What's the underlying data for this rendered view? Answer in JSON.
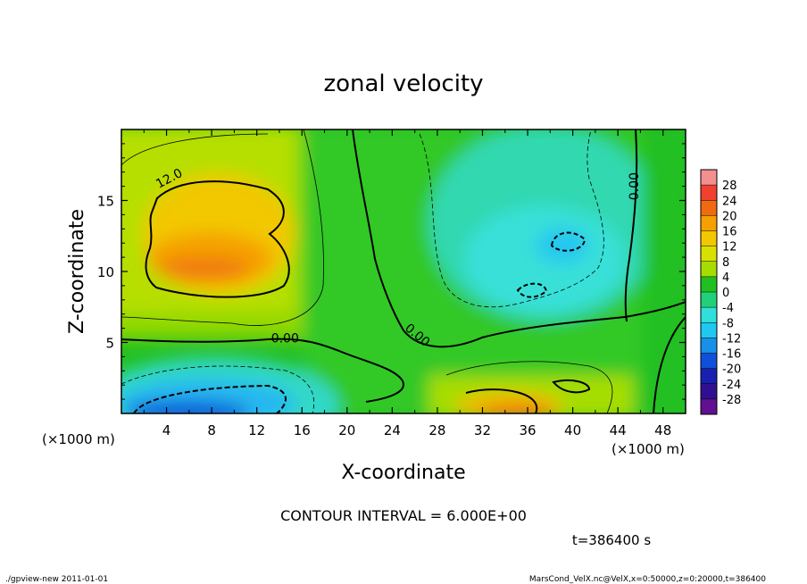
{
  "chart_data": {
    "type": "heatmap",
    "title": "zonal velocity",
    "xlabel": "X-coordinate",
    "ylabel": "Z-coordinate",
    "x_unit": "(×1000 m)",
    "y_unit": "(×1000 m)",
    "xlim": [
      0,
      50
    ],
    "ylim": [
      0,
      20
    ],
    "x_ticks": [
      4,
      8,
      12,
      16,
      20,
      24,
      28,
      32,
      36,
      40,
      44,
      48
    ],
    "y_ticks": [
      5,
      10,
      15
    ],
    "colorbar": {
      "labels": [
        "28",
        "24",
        "20",
        "16",
        "12",
        "8",
        "4",
        "0",
        "-4",
        "-8",
        "-12",
        "-16",
        "-20",
        "-24",
        "-28"
      ],
      "colors": [
        "#f38f8f",
        "#f04030",
        "#f06a10",
        "#f5a000",
        "#f2c800",
        "#d8e000",
        "#a6dd00",
        "#20c020",
        "#22d07a",
        "#30e0d8",
        "#20c8f0",
        "#1890e8",
        "#1050d8",
        "#1820b0",
        "#301090",
        "#601090"
      ]
    },
    "contour_labels": [
      {
        "text": "12.0",
        "x": 4.4,
        "y": 16.3,
        "rot": -28
      },
      {
        "text": "0.00",
        "x": 14.5,
        "y": 5.0,
        "rot": 0
      },
      {
        "text": "0.00",
        "x": 26.0,
        "y": 5.3,
        "rot": 40
      },
      {
        "text": "0.00",
        "x": 45.8,
        "y": 16.0,
        "rot": -90
      }
    ],
    "contour_interval_text": "CONTOUR INTERVAL = 6.000E+00",
    "time_text": "t=386400 s"
  },
  "footer": {
    "left": "./gpview-new  2011-01-01",
    "right": "MarsCond_VelX.nc@VelX,x=0:50000,z=0:20000,t=386400"
  }
}
